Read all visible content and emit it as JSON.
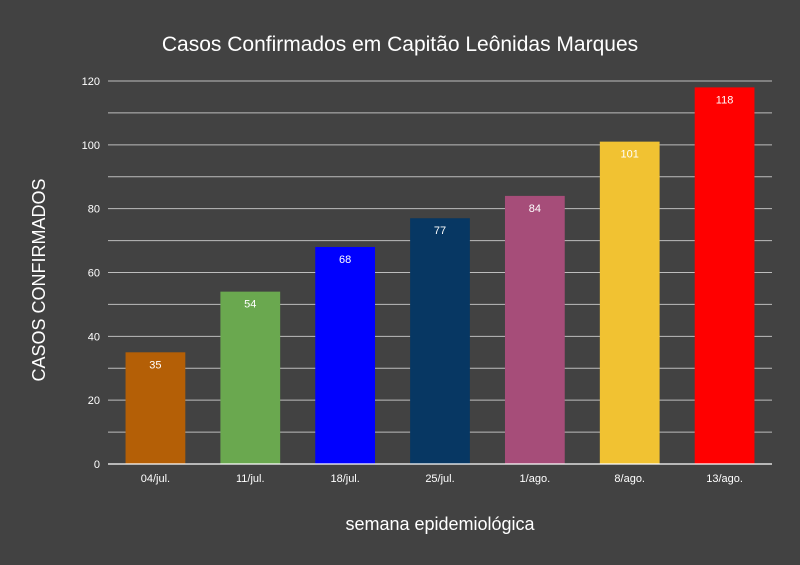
{
  "chart_data": {
    "type": "bar",
    "title": "Casos Confirmados em Capitão Leônidas Marques",
    "xlabel": "semana epidemiológica",
    "ylabel": "CASOS CONFIRMADOS",
    "categories": [
      "04/jul.",
      "11/jul.",
      "18/jul.",
      "25/jul.",
      "1/ago.",
      "8/ago.",
      "13/ago."
    ],
    "values": [
      35,
      54,
      68,
      77,
      84,
      101,
      118
    ],
    "colors": [
      "#b45f06",
      "#6aa84f",
      "#0000ff",
      "#073763",
      "#a64d79",
      "#f1c232",
      "#ff0000"
    ],
    "ylim": [
      0,
      120
    ],
    "yticks": [
      0,
      20,
      40,
      60,
      80,
      100,
      120
    ],
    "grid": true,
    "legend": "none"
  },
  "theme": {
    "background": "#424242",
    "text": "#ffffff",
    "gridline": "#bdbdbd"
  }
}
